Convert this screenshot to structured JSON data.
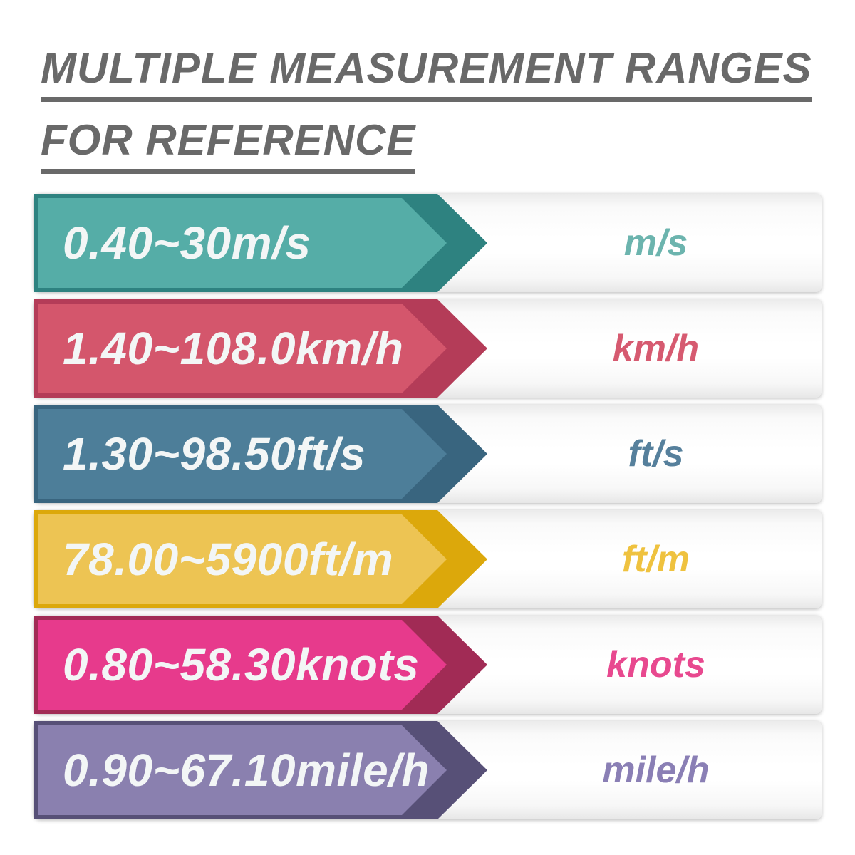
{
  "page": {
    "background": "#ffffff"
  },
  "title": {
    "line1": "MULTIPLE MEASUREMENT RANGES",
    "line2": "FOR REFERENCE",
    "color": "#696969"
  },
  "colors": {
    "range_text": "#f3f6f6",
    "band_background": "#ffffff"
  },
  "rows": [
    {
      "range": "0.40~30m/s",
      "unit": "m/s",
      "colors": {
        "body": "#55ada7",
        "dark": "#2e8280",
        "label": "#6cb4ae"
      }
    },
    {
      "range": "1.40~108.0km/h",
      "unit": "km/h",
      "colors": {
        "body": "#d4566c",
        "dark": "#b43c58",
        "label": "#d65a70"
      }
    },
    {
      "range": "1.30~98.50ft/s",
      "unit": "ft/s",
      "colors": {
        "body": "#4d7e99",
        "dark": "#39657f",
        "label": "#56809c"
      }
    },
    {
      "range": "78.00~5900ft/m",
      "unit": "ft/m",
      "colors": {
        "body": "#edc453",
        "dark": "#dca80b",
        "label": "#efc23f"
      }
    },
    {
      "range": "0.80~58.30knots",
      "unit": "knots",
      "colors": {
        "body": "#e73a8c",
        "dark": "#a12b55",
        "label": "#e8498f"
      }
    },
    {
      "range": "0.90~67.10mile/h",
      "unit": "mile/h",
      "colors": {
        "body": "#8a80af",
        "dark": "#575077",
        "label": "#8a7fb5"
      }
    }
  ]
}
